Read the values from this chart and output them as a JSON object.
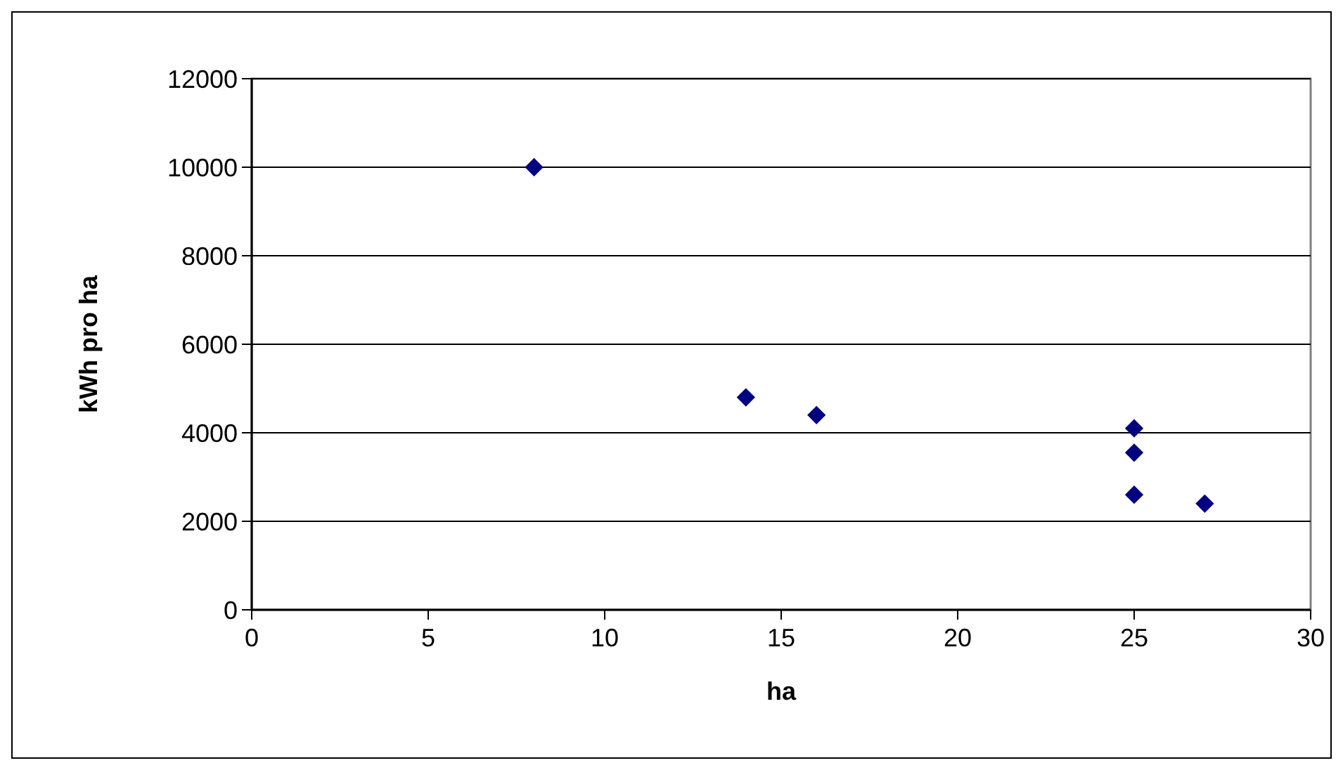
{
  "chart_data": {
    "type": "scatter",
    "xlabel": "ha",
    "ylabel": "kWh pro ha",
    "x": [
      8,
      14,
      16,
      25,
      25,
      25,
      27
    ],
    "values": [
      10000,
      4800,
      4400,
      4100,
      3550,
      2600,
      2400
    ],
    "color": "#000080",
    "marker": "diamond",
    "xlim": [
      0,
      30
    ],
    "xticks": [
      0,
      5,
      10,
      15,
      20,
      25,
      30
    ],
    "ylim": [
      0,
      12000
    ],
    "yticks": [
      0,
      2000,
      4000,
      6000,
      8000,
      10000,
      12000
    ],
    "grid": "y"
  }
}
